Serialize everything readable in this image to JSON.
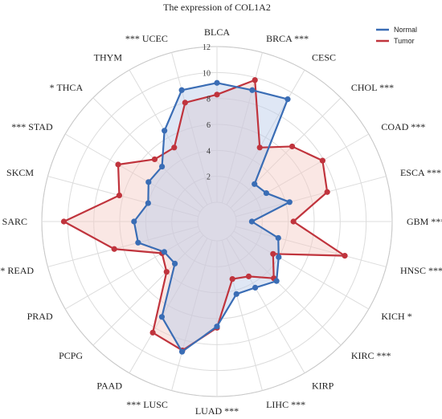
{
  "chart_data": {
    "type": "radar",
    "title": "The expression of COL1A2",
    "categories": [
      "BLCA",
      "BRCA",
      "CESC",
      "CHOL",
      "COAD",
      "ESCA",
      "GBM",
      "HNSC",
      "KICH",
      "KIRC",
      "KIRP",
      "LIHC",
      "LUAD",
      "LUSC",
      "PAAD",
      "PCPG",
      "PRAD",
      "READ",
      "SARC",
      "SKCM",
      "STAD",
      "THCA",
      "THYM",
      "UCEC"
    ],
    "significance": [
      "",
      "***",
      "",
      "***",
      "***",
      "***",
      "***",
      "***",
      "*",
      "***",
      "",
      "***",
      "***",
      "***",
      "",
      "",
      "",
      "*",
      "",
      "",
      "***",
      "*",
      "",
      "***"
    ],
    "radial_ticks": [
      2,
      4,
      6,
      8,
      10,
      12
    ],
    "rlim": [
      0,
      12
    ],
    "grid": true,
    "legend_position": "top-right",
    "series": [
      {
        "name": "Normal",
        "color": "#3a6db5",
        "fill": "#b7c9e8",
        "values": [
          9.2,
          9.0,
          9.4,
          2.6,
          2.9,
          4.3,
          1.2,
          3.4,
          4.0,
          5.0,
          4.4,
          4.3,
          6.6,
          8.9,
          7.0,
          3.1,
          3.2,
          4.8,
          4.9,
          4.0,
          4.6,
          4.5,
          6.6,
          9.0
        ]
      },
      {
        "name": "Tumor",
        "color": "#c0343d",
        "fill": "#f3c9c3",
        "values": [
          8.3,
          9.8,
          5.1,
          6.7,
          7.9,
          7.3,
          4.4,
          8.7,
          3.5,
          4.7,
          3.4,
          3.1,
          6.7,
          8.8,
          8.4,
          4.0,
          3.4,
          6.7,
          10.3,
          6.3,
          7.3,
          5.3,
          5.1,
          8.0
        ]
      }
    ]
  }
}
